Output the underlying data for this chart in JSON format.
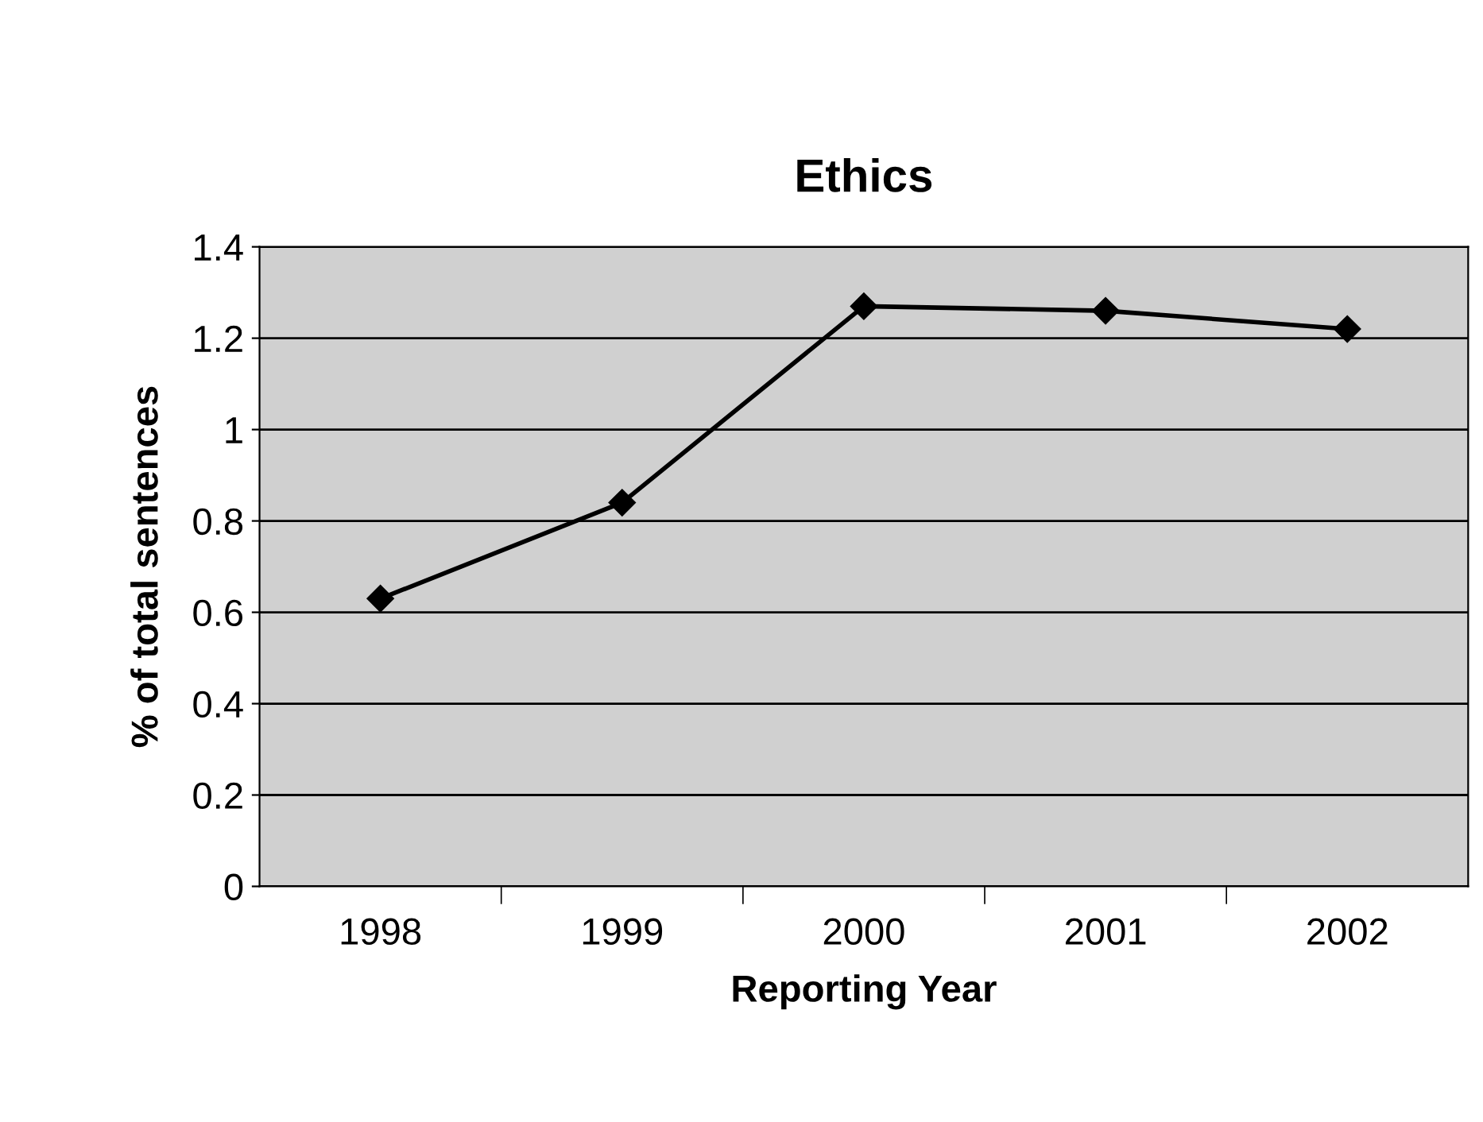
{
  "chart_data": {
    "type": "line",
    "title": "Ethics",
    "xlabel": "Reporting Year",
    "ylabel": "% of total sentences",
    "categories": [
      "1998",
      "1999",
      "2000",
      "2001",
      "2002"
    ],
    "series": [
      {
        "color": "#000000",
        "values": [
          0.63,
          0.84,
          1.27,
          1.26,
          1.22
        ]
      }
    ],
    "ylim": [
      0,
      1.4
    ],
    "yticks": [
      0,
      0.2,
      0.4,
      0.6,
      0.8,
      1,
      1.2,
      1.4
    ],
    "grid": "y",
    "marker": "diamond",
    "line_style": "solid",
    "legend": false
  }
}
